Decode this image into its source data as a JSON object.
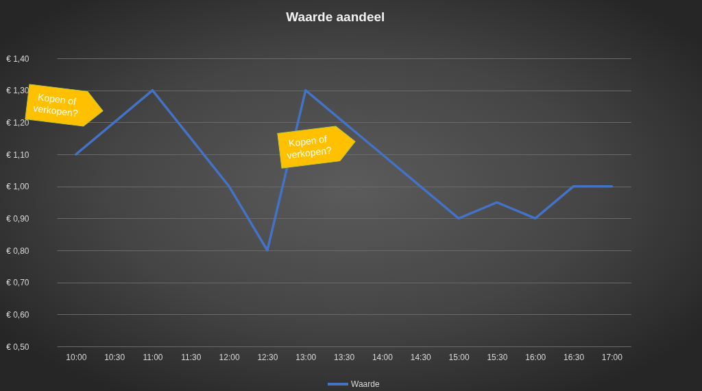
{
  "chart_data": {
    "type": "line",
    "title": "Waarde aandeel",
    "categories": [
      "10:00",
      "10:30",
      "11:00",
      "11:30",
      "12:00",
      "12:30",
      "13:00",
      "13:30",
      "14:00",
      "14:30",
      "15:00",
      "15:30",
      "16:00",
      "16:30",
      "17:00"
    ],
    "series": [
      {
        "name": "Waarde",
        "color": "#4472c4",
        "values": [
          1.1,
          1.2,
          1.3,
          1.15,
          1.0,
          0.8,
          1.3,
          1.2,
          1.1,
          1.0,
          0.9,
          0.95,
          0.9,
          1.0,
          1.0
        ]
      }
    ],
    "ylim": [
      0.5,
      1.4
    ],
    "yticks": [
      {
        "value": 0.5,
        "label": "€ 0,50"
      },
      {
        "value": 0.6,
        "label": "€ 0,60"
      },
      {
        "value": 0.7,
        "label": "€ 0,70"
      },
      {
        "value": 0.8,
        "label": "€ 0,80"
      },
      {
        "value": 0.9,
        "label": "€ 0,90"
      },
      {
        "value": 1.0,
        "label": "€ 1,00"
      },
      {
        "value": 1.1,
        "label": "€ 1,10"
      },
      {
        "value": 1.2,
        "label": "€ 1,20"
      },
      {
        "value": 1.3,
        "label": "€ 1,30"
      },
      {
        "value": 1.4,
        "label": "€ 1,40"
      }
    ],
    "grid": "y",
    "legend": "bottom",
    "line_style": "solid",
    "marker": "none",
    "annotations": [
      "Kopen of verkopen?",
      "Kopen of verkopen?"
    ]
  }
}
